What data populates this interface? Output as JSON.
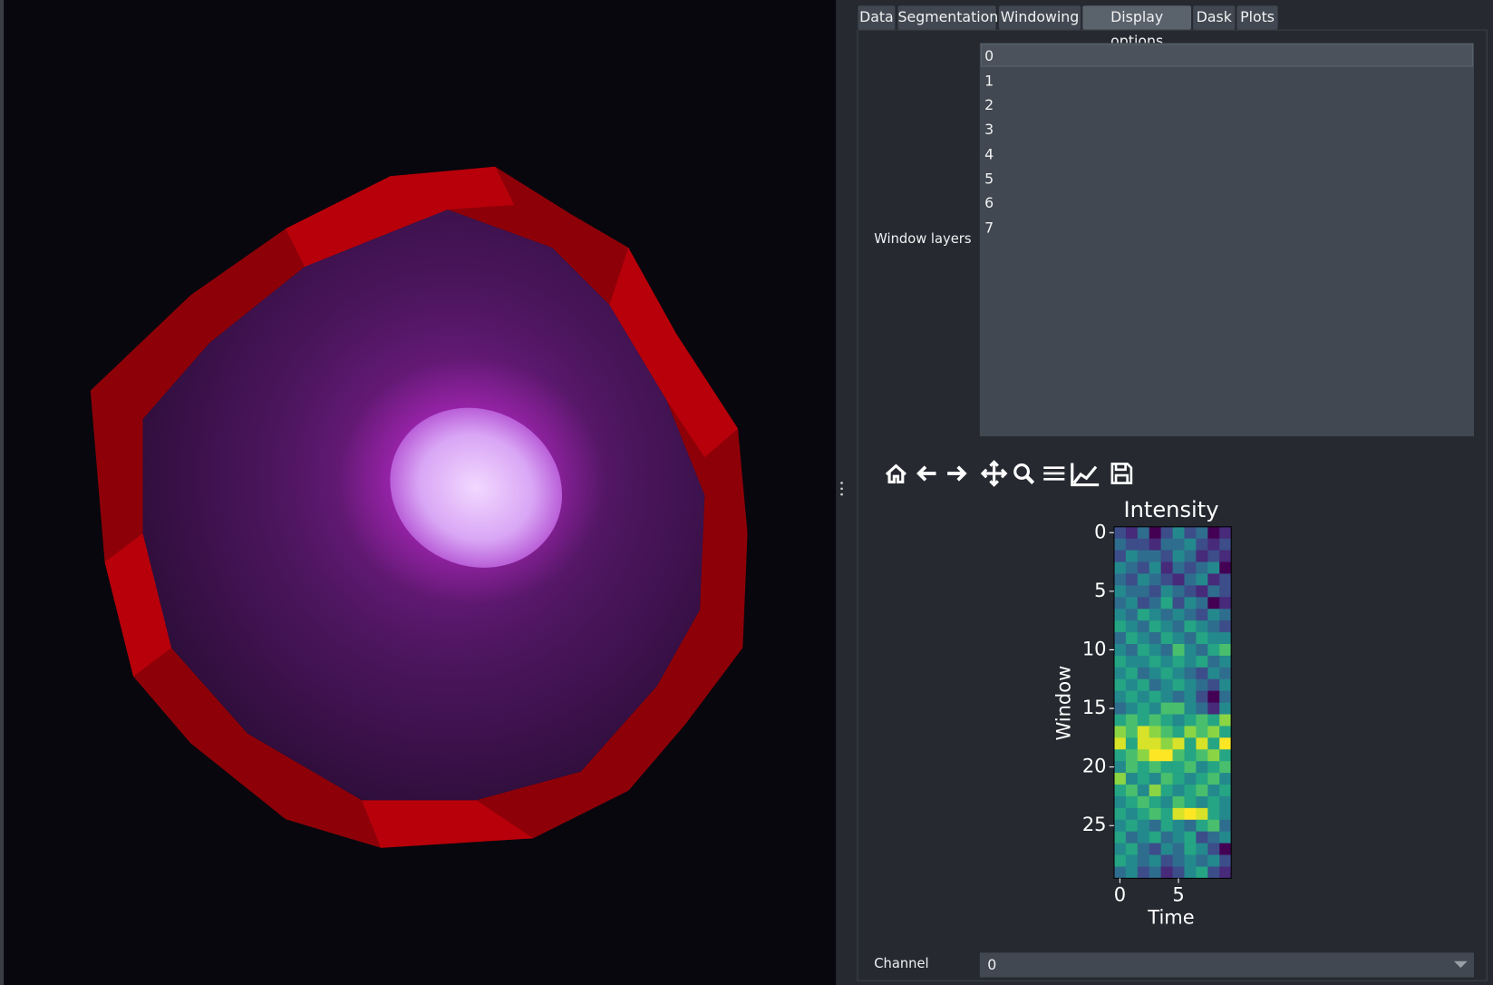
{
  "tabs": [
    "Data",
    "Segmentation",
    "Windowing",
    "Display options",
    "Dask",
    "Plots"
  ],
  "window_layers": {
    "label": "Window layers",
    "items": [
      "0",
      "1",
      "2",
      "3",
      "4",
      "5",
      "6",
      "7"
    ]
  },
  "channel": {
    "label": "Channel",
    "value": "0"
  },
  "chart_data": {
    "type": "heatmap",
    "title": "Intensity",
    "x_label": "Time",
    "y_label": "Window",
    "colormap": "viridis",
    "xlim": [
      -0.5,
      9.5
    ],
    "ylim": [
      29.5,
      -0.5
    ],
    "xticks": [
      0,
      5
    ],
    "yticks": [
      0,
      5,
      10,
      15,
      20,
      25
    ],
    "values": [
      [
        0.3,
        0.2,
        0.4,
        0.1,
        0.3,
        0.5,
        0.3,
        0.4,
        0.1,
        0.2
      ],
      [
        0.4,
        0.3,
        0.3,
        0.2,
        0.4,
        0.4,
        0.5,
        0.3,
        0.2,
        0.3
      ],
      [
        0.3,
        0.5,
        0.4,
        0.4,
        0.3,
        0.5,
        0.4,
        0.2,
        0.3,
        0.2
      ],
      [
        0.5,
        0.4,
        0.3,
        0.5,
        0.2,
        0.4,
        0.3,
        0.4,
        0.5,
        0.1
      ],
      [
        0.4,
        0.3,
        0.5,
        0.4,
        0.3,
        0.2,
        0.4,
        0.5,
        0.2,
        0.3
      ],
      [
        0.5,
        0.4,
        0.4,
        0.3,
        0.5,
        0.4,
        0.3,
        0.2,
        0.4,
        0.3
      ],
      [
        0.4,
        0.5,
        0.3,
        0.4,
        0.6,
        0.3,
        0.5,
        0.4,
        0.1,
        0.2
      ],
      [
        0.5,
        0.4,
        0.6,
        0.5,
        0.4,
        0.5,
        0.4,
        0.3,
        0.5,
        0.4
      ],
      [
        0.6,
        0.5,
        0.4,
        0.6,
        0.5,
        0.4,
        0.6,
        0.5,
        0.4,
        0.3
      ],
      [
        0.4,
        0.6,
        0.5,
        0.4,
        0.6,
        0.5,
        0.4,
        0.6,
        0.5,
        0.5
      ],
      [
        0.5,
        0.4,
        0.6,
        0.5,
        0.4,
        0.7,
        0.5,
        0.4,
        0.6,
        0.7
      ],
      [
        0.6,
        0.5,
        0.5,
        0.6,
        0.5,
        0.6,
        0.5,
        0.6,
        0.4,
        0.5
      ],
      [
        0.5,
        0.6,
        0.4,
        0.5,
        0.6,
        0.5,
        0.4,
        0.3,
        0.5,
        0.4
      ],
      [
        0.6,
        0.5,
        0.6,
        0.4,
        0.5,
        0.6,
        0.5,
        0.4,
        0.3,
        0.5
      ],
      [
        0.5,
        0.6,
        0.5,
        0.6,
        0.5,
        0.4,
        0.5,
        0.3,
        0.1,
        0.4
      ],
      [
        0.4,
        0.5,
        0.6,
        0.5,
        0.7,
        0.7,
        0.5,
        0.4,
        0.2,
        0.5
      ],
      [
        0.6,
        0.7,
        0.6,
        0.7,
        0.6,
        0.5,
        0.6,
        0.7,
        0.6,
        0.8
      ],
      [
        0.8,
        0.7,
        0.9,
        0.8,
        0.7,
        0.6,
        0.8,
        0.7,
        0.8,
        0.6
      ],
      [
        0.9,
        0.6,
        0.9,
        0.9,
        0.8,
        0.9,
        0.6,
        0.9,
        0.6,
        0.95
      ],
      [
        0.6,
        0.7,
        0.8,
        0.95,
        0.95,
        0.7,
        0.6,
        0.7,
        0.8,
        0.6
      ],
      [
        0.5,
        0.7,
        0.6,
        0.7,
        0.6,
        0.6,
        0.7,
        0.5,
        0.6,
        0.7
      ],
      [
        0.8,
        0.5,
        0.6,
        0.5,
        0.7,
        0.6,
        0.5,
        0.6,
        0.7,
        0.5
      ],
      [
        0.6,
        0.7,
        0.5,
        0.8,
        0.6,
        0.5,
        0.6,
        0.7,
        0.5,
        0.6
      ],
      [
        0.5,
        0.6,
        0.7,
        0.6,
        0.5,
        0.7,
        0.6,
        0.5,
        0.6,
        0.5
      ],
      [
        0.6,
        0.5,
        0.6,
        0.7,
        0.6,
        0.9,
        0.95,
        0.9,
        0.6,
        0.5
      ],
      [
        0.5,
        0.6,
        0.5,
        0.4,
        0.6,
        0.5,
        0.4,
        0.6,
        0.7,
        0.4
      ],
      [
        0.6,
        0.4,
        0.5,
        0.6,
        0.4,
        0.5,
        0.6,
        0.3,
        0.4,
        0.5
      ],
      [
        0.5,
        0.6,
        0.4,
        0.3,
        0.5,
        0.4,
        0.6,
        0.5,
        0.3,
        0.1
      ],
      [
        0.6,
        0.5,
        0.4,
        0.5,
        0.3,
        0.4,
        0.5,
        0.4,
        0.5,
        0.3
      ],
      [
        0.4,
        0.5,
        0.3,
        0.4,
        0.2,
        0.3,
        0.5,
        0.6,
        0.3,
        0.2
      ]
    ]
  }
}
